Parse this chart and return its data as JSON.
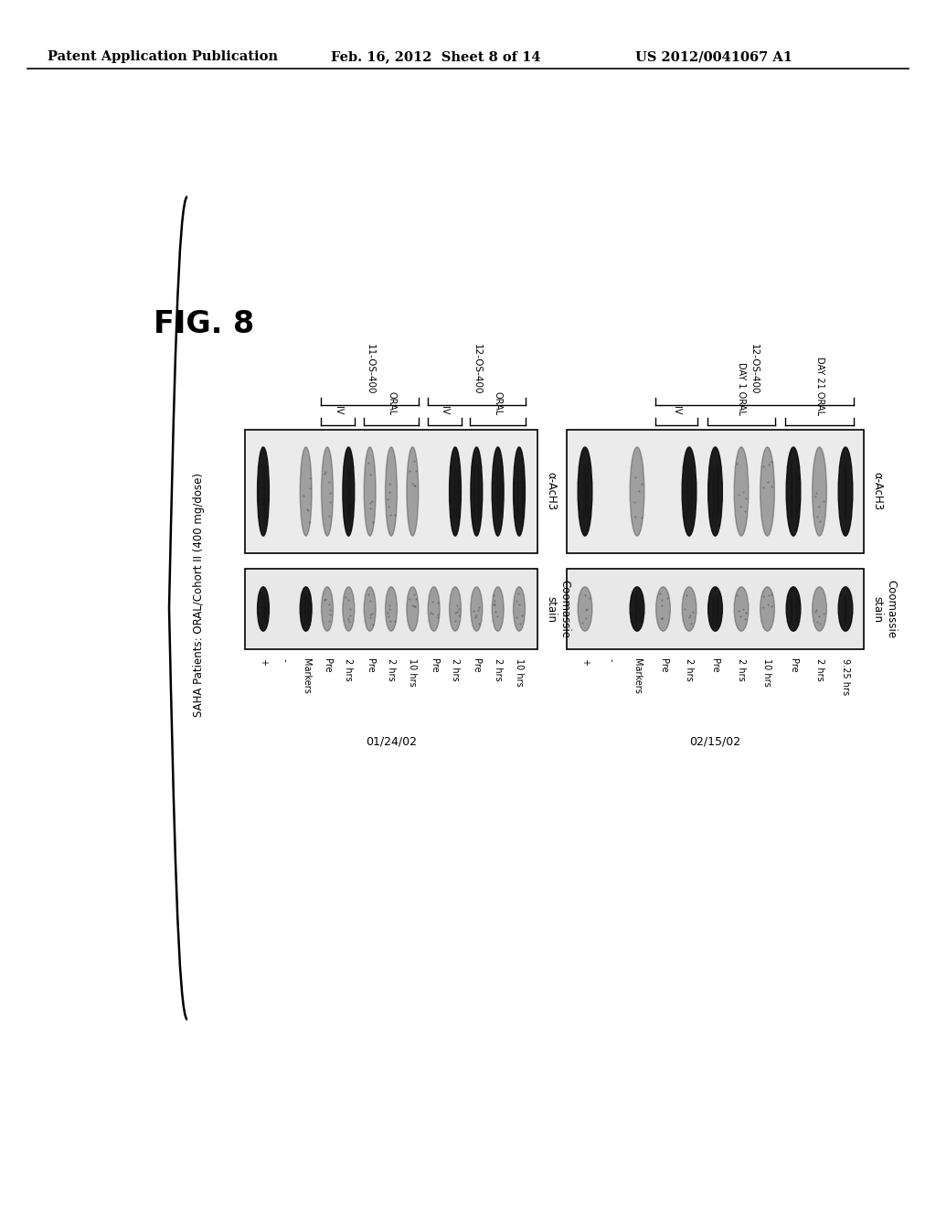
{
  "bg_color": "#ffffff",
  "header_left": "Patent Application Publication",
  "header_center": "Feb. 16, 2012  Sheet 8 of 14",
  "header_right": "US 2012/0041067 A1",
  "fig_label": "FIG. 8",
  "main_title": "SAHA Patients: ORAL/Cohort II (400 mg/dose)",
  "gel1": {
    "date": "01/24/02",
    "label_ach3": "α-AcH3",
    "label_coom": "Coomassie\nstain",
    "lanes": [
      {
        "label": "+",
        "ach3": 2,
        "coom": 2,
        "group": "extra"
      },
      {
        "label": "-",
        "ach3": 0,
        "coom": 0,
        "group": "extra"
      },
      {
        "label": "Markers",
        "ach3": 1,
        "coom": 2,
        "group": "extra"
      },
      {
        "label": "Pre",
        "ach3": 1,
        "coom": 1,
        "group": "11IV"
      },
      {
        "label": "2 hrs",
        "ach3": 2,
        "coom": 1,
        "group": "11IV"
      },
      {
        "label": "Pre",
        "ach3": 1,
        "coom": 1,
        "group": "11ORAL"
      },
      {
        "label": "2 hrs",
        "ach3": 1,
        "coom": 1,
        "group": "11ORAL"
      },
      {
        "label": "10 hrs",
        "ach3": 1,
        "coom": 1,
        "group": "11ORAL"
      },
      {
        "label": "Pre",
        "ach3": 0,
        "coom": 1,
        "group": "12IV"
      },
      {
        "label": "2 hrs",
        "ach3": 2,
        "coom": 1,
        "group": "12IV"
      },
      {
        "label": "Pre",
        "ach3": 2,
        "coom": 1,
        "group": "12ORAL"
      },
      {
        "label": "2 hrs",
        "ach3": 2,
        "coom": 1,
        "group": "12ORAL"
      },
      {
        "label": "10 hrs",
        "ach3": 2,
        "coom": 1,
        "group": "12ORAL"
      }
    ],
    "brackets": [
      {
        "label": "IV",
        "from": 3,
        "to": 4,
        "level": 1
      },
      {
        "label": "ORAL",
        "from": 5,
        "to": 7,
        "level": 1
      },
      {
        "label": "11-OS-400",
        "from": 3,
        "to": 7,
        "level": 2
      },
      {
        "label": "IV",
        "from": 8,
        "to": 9,
        "level": 1
      },
      {
        "label": "ORAL",
        "from": 10,
        "to": 12,
        "level": 1
      },
      {
        "label": "12-OS-400",
        "from": 8,
        "to": 12,
        "level": 2
      }
    ]
  },
  "gel2": {
    "date": "02/15/02",
    "label_ach3": "α-AcH3",
    "label_coom": "Coomassie\nstain",
    "lanes": [
      {
        "label": "+",
        "ach3": 2,
        "coom": 1,
        "group": "extra"
      },
      {
        "label": "-",
        "ach3": 0,
        "coom": 0,
        "group": "extra"
      },
      {
        "label": "Markers",
        "ach3": 1,
        "coom": 2,
        "group": "extra"
      },
      {
        "label": "Pre",
        "ach3": 0,
        "coom": 1,
        "group": "12IV"
      },
      {
        "label": "2 hrs",
        "ach3": 2,
        "coom": 1,
        "group": "12IV"
      },
      {
        "label": "Pre",
        "ach3": 2,
        "coom": 2,
        "group": "12D1ORAL"
      },
      {
        "label": "2 hrs",
        "ach3": 1,
        "coom": 1,
        "group": "12D1ORAL"
      },
      {
        "label": "10 hrs",
        "ach3": 1,
        "coom": 1,
        "group": "12D1ORAL"
      },
      {
        "label": "Pre",
        "ach3": 2,
        "coom": 2,
        "group": "12D21ORAL"
      },
      {
        "label": "2 hrs",
        "ach3": 1,
        "coom": 1,
        "group": "12D21ORAL"
      },
      {
        "label": "9.25 hrs",
        "ach3": 2,
        "coom": 2,
        "group": "12D21ORAL"
      }
    ],
    "brackets": [
      {
        "label": "IV",
        "from": 3,
        "to": 4,
        "level": 1
      },
      {
        "label": "DAY 1 ORAL",
        "from": 5,
        "to": 7,
        "level": 1
      },
      {
        "label": "DAY 21 ORAL",
        "from": 8,
        "to": 10,
        "level": 1
      },
      {
        "label": "12-OS-400",
        "from": 3,
        "to": 10,
        "level": 2
      }
    ]
  }
}
